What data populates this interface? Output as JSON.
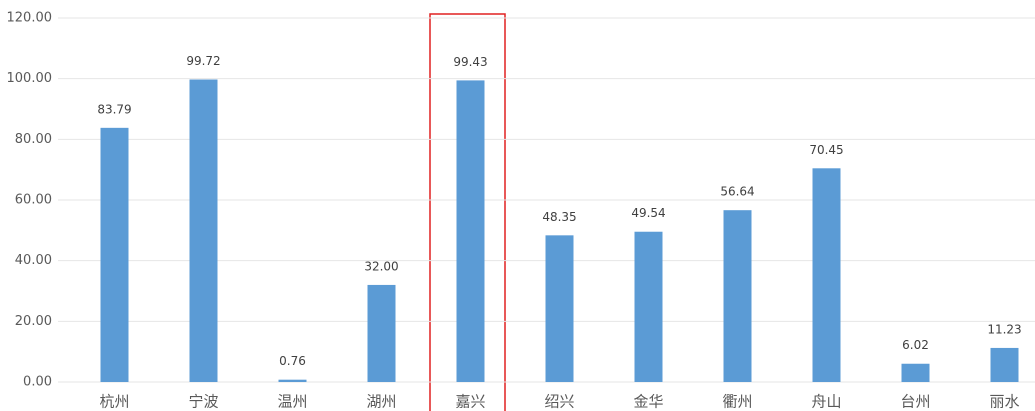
{
  "chart_data": {
    "type": "bar",
    "categories": [
      "杭州",
      "宁波",
      "温州",
      "湖州",
      "嘉兴",
      "绍兴",
      "金华",
      "衢州",
      "舟山",
      "台州",
      "丽水"
    ],
    "values": [
      83.79,
      99.72,
      0.76,
      32.0,
      99.43,
      48.35,
      49.54,
      56.64,
      70.45,
      6.02,
      11.23
    ],
    "value_labels": [
      "83.79",
      "99.72",
      "0.76",
      "32.00",
      "99.43",
      "48.35",
      "49.54",
      "56.64",
      "70.45",
      "6.02",
      "11.23"
    ],
    "color": "#5b9bd5",
    "ylim": [
      0,
      120
    ],
    "yticks": [
      {
        "value": 0,
        "label": "0.00"
      },
      {
        "value": 20,
        "label": "20.00"
      },
      {
        "value": 40,
        "label": "40.00"
      },
      {
        "value": 60,
        "label": "60.00"
      },
      {
        "value": 80,
        "label": "80.00"
      },
      {
        "value": 100,
        "label": "100.00"
      },
      {
        "value": 120,
        "label": "120.00"
      }
    ],
    "grid": true
  }
}
